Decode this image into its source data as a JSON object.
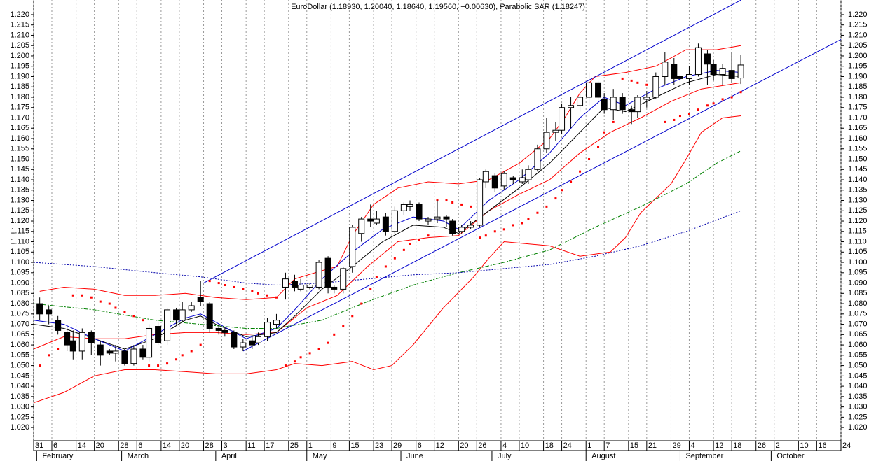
{
  "chart_data": {
    "type": "candlestick",
    "title": "EuroDollar (1.18930, 1.20040, 1.18640, 1.19560, +0.00630), Parabolic SAR (1.18247)",
    "xlim": [
      0,
      266
    ],
    "ylim": [
      1.0136,
      1.2271
    ],
    "grid": "x",
    "up_color": "#ffffff",
    "down_color": "#000000",
    "xticks": [
      {
        "value": 0,
        "label": "31"
      },
      {
        "value": 6,
        "label": "6"
      },
      {
        "value": 14,
        "label": "14"
      },
      {
        "value": 20,
        "label": "20"
      },
      {
        "value": 28,
        "label": "28"
      },
      {
        "value": 34,
        "label": "6"
      },
      {
        "value": 42,
        "label": "14"
      },
      {
        "value": 48,
        "label": "20"
      },
      {
        "value": 56,
        "label": "28"
      },
      {
        "value": 62,
        "label": "3"
      },
      {
        "value": 70,
        "label": "11"
      },
      {
        "value": 76,
        "label": "17"
      },
      {
        "value": 84,
        "label": "25"
      },
      {
        "value": 90,
        "label": "1"
      },
      {
        "value": 98,
        "label": "9"
      },
      {
        "value": 104,
        "label": "15"
      },
      {
        "value": 112,
        "label": "23"
      },
      {
        "value": 118,
        "label": "29"
      },
      {
        "value": 126,
        "label": "6"
      },
      {
        "value": 132,
        "label": "12"
      },
      {
        "value": 140,
        "label": "20"
      },
      {
        "value": 146,
        "label": "26"
      },
      {
        "value": 154,
        "label": "4"
      },
      {
        "value": 160,
        "label": "10"
      },
      {
        "value": 168,
        "label": "18"
      },
      {
        "value": 174,
        "label": "24"
      },
      {
        "value": 182,
        "label": "1"
      },
      {
        "value": 188,
        "label": "7"
      },
      {
        "value": 196,
        "label": "15"
      },
      {
        "value": 202,
        "label": "21"
      },
      {
        "value": 210,
        "label": "29"
      },
      {
        "value": 216,
        "label": "4"
      },
      {
        "value": 224,
        "label": "12"
      },
      {
        "value": 230,
        "label": "18"
      },
      {
        "value": 238,
        "label": "26"
      },
      {
        "value": 244,
        "label": "2"
      },
      {
        "value": 252,
        "label": "10"
      },
      {
        "value": 258,
        "label": "16"
      },
      {
        "value": 266,
        "label": "24"
      }
    ],
    "months": [
      {
        "value": 1,
        "label": "February"
      },
      {
        "value": 29,
        "label": "March"
      },
      {
        "value": 60,
        "label": "April"
      },
      {
        "value": 90,
        "label": "May"
      },
      {
        "value": 121,
        "label": "June"
      },
      {
        "value": 151,
        "label": "July"
      },
      {
        "value": 182,
        "label": "August"
      },
      {
        "value": 213,
        "label": "September"
      },
      {
        "value": 243,
        "label": "October"
      }
    ],
    "yticks": [
      {
        "value": 1.02,
        "label": "1.020"
      },
      1.025,
      {
        "value": 1.03,
        "label": "1.030"
      },
      1.035,
      {
        "value": 1.04,
        "label": "1.040"
      },
      1.045,
      {
        "value": 1.05,
        "label": "1.050"
      },
      1.055,
      {
        "value": 1.06,
        "label": "1.060"
      },
      1.065,
      {
        "value": 1.07,
        "label": "1.070"
      },
      1.075,
      {
        "value": 1.08,
        "label": "1.080"
      },
      1.085,
      {
        "value": 1.09,
        "label": "1.090"
      },
      1.095,
      {
        "value": 1.1,
        "label": "1.100"
      },
      1.105,
      {
        "value": 1.11,
        "label": "1.110"
      },
      1.115,
      {
        "value": 1.12,
        "label": "1.120"
      },
      1.125,
      {
        "value": 1.13,
        "label": "1.130"
      },
      1.135,
      {
        "value": 1.14,
        "label": "1.140"
      },
      1.145,
      {
        "value": 1.15,
        "label": "1.150"
      },
      1.155,
      {
        "value": 1.16,
        "label": "1.160"
      },
      1.165,
      {
        "value": 1.17,
        "label": "1.170"
      },
      1.175,
      {
        "value": 1.18,
        "label": "1.180"
      },
      1.185,
      {
        "value": 1.19,
        "label": "1.190"
      },
      1.195,
      {
        "value": 1.2,
        "label": "1.200"
      },
      1.205,
      {
        "value": 1.21,
        "label": "1.210"
      },
      1.215,
      {
        "value": 1.22,
        "label": "1.220"
      }
    ],
    "x": [
      2,
      5,
      8,
      11,
      13,
      16,
      19,
      22,
      25,
      27,
      30,
      33,
      36,
      38,
      41,
      44,
      47,
      49,
      52,
      55,
      58,
      61,
      63,
      66,
      69,
      72,
      74,
      77,
      80,
      83,
      86,
      88,
      91,
      94,
      97,
      99,
      102,
      105,
      108,
      111,
      113,
      116,
      119,
      122,
      124,
      127,
      130,
      133,
      136,
      138,
      141,
      144,
      147,
      149,
      152,
      155,
      158,
      161,
      163,
      166,
      169,
      172,
      174,
      177,
      180,
      183,
      186,
      188,
      191,
      194,
      197,
      199,
      202,
      205,
      208,
      211,
      213,
      216,
      219,
      222,
      224,
      227,
      230,
      233
    ],
    "open": [
      1.08,
      1.077,
      1.072,
      1.066,
      1.062,
      1.057,
      1.066,
      1.06,
      1.057,
      1.056,
      1.057,
      1.051,
      1.058,
      1.054,
      1.069,
      1.062,
      1.077,
      1.072,
      1.077,
      1.083,
      1.08,
      1.068,
      1.067,
      1.066,
      1.059,
      1.062,
      1.061,
      1.064,
      1.07,
      1.088,
      1.091,
      1.087,
      1.088,
      1.088,
      1.102,
      1.088,
      1.087,
      1.098,
      1.114,
      1.121,
      1.119,
      1.122,
      1.115,
      1.125,
      1.127,
      1.128,
      1.12,
      1.121,
      1.122,
      1.12,
      1.115,
      1.117,
      1.118,
      1.139,
      1.142,
      1.137,
      1.141,
      1.139,
      1.14,
      1.145,
      1.155,
      1.163,
      1.164,
      1.175,
      1.176,
      1.18,
      1.187,
      1.179,
      1.174,
      1.18,
      1.174,
      1.173,
      1.179,
      1.18,
      1.19,
      1.196,
      1.19,
      1.189,
      1.191,
      1.201,
      1.196,
      1.191,
      1.193,
      1.1893
    ],
    "high": [
      1.083,
      1.079,
      1.074,
      1.069,
      1.067,
      1.068,
      1.067,
      1.062,
      1.058,
      1.06,
      1.058,
      1.06,
      1.06,
      1.07,
      1.071,
      1.078,
      1.078,
      1.081,
      1.081,
      1.091,
      1.081,
      1.07,
      1.068,
      1.067,
      1.063,
      1.064,
      1.066,
      1.073,
      1.075,
      1.095,
      1.094,
      1.092,
      1.09,
      1.101,
      1.103,
      1.089,
      1.098,
      1.118,
      1.122,
      1.128,
      1.125,
      1.124,
      1.127,
      1.129,
      1.13,
      1.129,
      1.122,
      1.13,
      1.123,
      1.121,
      1.118,
      1.12,
      1.141,
      1.145,
      1.143,
      1.144,
      1.142,
      1.145,
      1.147,
      1.157,
      1.17,
      1.168,
      1.177,
      1.18,
      1.183,
      1.192,
      1.188,
      1.182,
      1.184,
      1.182,
      1.176,
      1.181,
      1.183,
      1.192,
      1.202,
      1.199,
      1.191,
      1.195,
      1.206,
      1.203,
      1.198,
      1.196,
      1.202,
      1.2004
    ],
    "low": [
      1.072,
      1.07,
      1.065,
      1.057,
      1.053,
      1.053,
      1.055,
      1.05,
      1.055,
      1.052,
      1.05,
      1.05,
      1.053,
      1.052,
      1.06,
      1.06,
      1.07,
      1.071,
      1.076,
      1.079,
      1.066,
      1.065,
      1.064,
      1.058,
      1.057,
      1.058,
      1.06,
      1.062,
      1.068,
      1.082,
      1.086,
      1.086,
      1.087,
      1.087,
      1.085,
      1.085,
      1.085,
      1.095,
      1.11,
      1.117,
      1.118,
      1.113,
      1.114,
      1.123,
      1.125,
      1.12,
      1.118,
      1.119,
      1.117,
      1.113,
      1.114,
      1.116,
      1.117,
      1.136,
      1.134,
      1.135,
      1.138,
      1.138,
      1.138,
      1.144,
      1.153,
      1.159,
      1.162,
      1.165,
      1.173,
      1.176,
      1.178,
      1.172,
      1.169,
      1.172,
      1.167,
      1.17,
      1.175,
      1.179,
      1.186,
      1.186,
      1.187,
      1.186,
      1.19,
      1.186,
      1.188,
      1.186,
      1.187,
      1.1864
    ],
    "close": [
      1.075,
      1.075,
      1.067,
      1.06,
      1.057,
      1.066,
      1.061,
      1.055,
      1.056,
      1.057,
      1.051,
      1.058,
      1.054,
      1.068,
      1.061,
      1.077,
      1.072,
      1.077,
      1.079,
      1.081,
      1.068,
      1.067,
      1.066,
      1.059,
      1.061,
      1.06,
      1.064,
      1.071,
      1.072,
      1.092,
      1.088,
      1.089,
      1.089,
      1.1,
      1.088,
      1.087,
      1.097,
      1.117,
      1.121,
      1.12,
      1.121,
      1.115,
      1.125,
      1.128,
      1.128,
      1.121,
      1.121,
      1.122,
      1.121,
      1.114,
      1.117,
      1.118,
      1.14,
      1.144,
      1.136,
      1.143,
      1.14,
      1.141,
      1.145,
      1.155,
      1.163,
      1.164,
      1.175,
      1.176,
      1.18,
      1.187,
      1.18,
      1.174,
      1.18,
      1.174,
      1.173,
      1.18,
      1.18,
      1.19,
      1.197,
      1.189,
      1.189,
      1.191,
      1.204,
      1.196,
      1.191,
      1.194,
      1.189,
      1.1956
    ],
    "sar": {
      "color": "#ff0000",
      "values": [
        1.05,
        1.055,
        1.058,
        1.061,
        1.084,
        1.084,
        1.083,
        1.081,
        1.08,
        1.078,
        1.076,
        1.074,
        1.072,
        1.05,
        1.05,
        1.051,
        1.053,
        1.055,
        1.057,
        1.06,
        1.091,
        1.09,
        1.089,
        1.088,
        1.087,
        1.086,
        1.085,
        1.084,
        1.083,
        1.05,
        1.052,
        1.054,
        1.056,
        1.058,
        1.061,
        1.065,
        1.069,
        1.074,
        1.08,
        1.087,
        1.093,
        1.098,
        1.102,
        1.106,
        1.109,
        1.111,
        1.113,
        1.13,
        1.13,
        1.129,
        1.128,
        1.127,
        1.112,
        1.113,
        1.115,
        1.116,
        1.118,
        1.119,
        1.121,
        1.124,
        1.127,
        1.131,
        1.135,
        1.139,
        1.144,
        1.15,
        1.156,
        1.163,
        1.168,
        1.189,
        1.188,
        1.187,
        1.186,
        1.185,
        1.168,
        1.169,
        1.171,
        1.172,
        1.174,
        1.176,
        1.177,
        1.179,
        1.18,
        1.18247
      ]
    },
    "lines": [
      {
        "color": "#ff0000",
        "style": "solid",
        "x": [
          2,
          10,
          20,
          30,
          40,
          50,
          60,
          70,
          80,
          86,
          95,
          100,
          105,
          112,
          120,
          130,
          140,
          150,
          160,
          170,
          175,
          180,
          185,
          195,
          205,
          215,
          225,
          233
        ],
        "values": [
          1.086,
          1.088,
          1.087,
          1.084,
          1.084,
          1.085,
          1.083,
          1.082,
          1.083,
          1.092,
          1.096,
          1.098,
          1.113,
          1.128,
          1.136,
          1.139,
          1.138,
          1.14,
          1.148,
          1.16,
          1.17,
          1.182,
          1.19,
          1.192,
          1.195,
          1.203,
          1.203,
          1.205
        ]
      },
      {
        "color": "#ff0000",
        "style": "solid",
        "x": [
          0,
          10,
          20,
          30,
          40,
          50,
          60,
          70,
          80,
          86,
          95,
          105,
          112,
          118,
          125,
          135,
          145,
          150,
          155,
          170,
          180,
          190,
          195,
          200,
          210,
          215,
          220,
          227,
          233
        ],
        "values": [
          1.032,
          1.037,
          1.045,
          1.048,
          1.048,
          1.047,
          1.046,
          1.046,
          1.048,
          1.051,
          1.05,
          1.052,
          1.048,
          1.05,
          1.06,
          1.078,
          1.093,
          1.102,
          1.11,
          1.108,
          1.103,
          1.105,
          1.112,
          1.124,
          1.138,
          1.15,
          1.163,
          1.17,
          1.171
        ]
      },
      {
        "color": "#ff0000",
        "style": "solid",
        "x": [
          0,
          10,
          20,
          30,
          40,
          50,
          60,
          70,
          80,
          90,
          100,
          110,
          120,
          130,
          140,
          150,
          160,
          170,
          180,
          190,
          200,
          210,
          220,
          233
        ],
        "values": [
          1.058,
          1.064,
          1.063,
          1.063,
          1.065,
          1.066,
          1.066,
          1.065,
          1.066,
          1.078,
          1.084,
          1.098,
          1.11,
          1.112,
          1.113,
          1.125,
          1.133,
          1.14,
          1.153,
          1.163,
          1.17,
          1.178,
          1.184,
          1.187
        ]
      },
      {
        "color": "#000000",
        "style": "solid",
        "x": [
          0,
          10,
          20,
          30,
          40,
          50,
          55,
          60,
          70,
          80,
          86,
          95,
          105,
          115,
          125,
          135,
          140,
          150,
          160,
          170,
          180,
          188,
          195,
          205,
          215,
          225,
          233
        ],
        "values": [
          1.07,
          1.068,
          1.063,
          1.058,
          1.063,
          1.072,
          1.074,
          1.07,
          1.064,
          1.066,
          1.074,
          1.087,
          1.098,
          1.11,
          1.118,
          1.117,
          1.114,
          1.125,
          1.136,
          1.148,
          1.163,
          1.175,
          1.173,
          1.18,
          1.187,
          1.191,
          1.19
        ]
      },
      {
        "color": "#0000cc",
        "style": "solid",
        "x": [
          0,
          10,
          20,
          30,
          40,
          50,
          55,
          60,
          70,
          80,
          86,
          95,
          105,
          115,
          125,
          135,
          140,
          150,
          160,
          170,
          180,
          188,
          195,
          205,
          215,
          225,
          233
        ],
        "values": [
          1.072,
          1.07,
          1.063,
          1.057,
          1.065,
          1.073,
          1.075,
          1.071,
          1.063,
          1.068,
          1.077,
          1.092,
          1.105,
          1.116,
          1.122,
          1.12,
          1.116,
          1.13,
          1.14,
          1.153,
          1.17,
          1.18,
          1.176,
          1.184,
          1.19,
          1.193,
          1.192
        ]
      },
      {
        "color": "#008000",
        "style": "dashdot",
        "x": [
          0,
          20,
          40,
          55,
          70,
          80,
          95,
          110,
          125,
          140,
          155,
          170,
          185,
          200,
          215,
          225,
          233
        ],
        "values": [
          1.08,
          1.077,
          1.072,
          1.07,
          1.068,
          1.068,
          1.072,
          1.081,
          1.089,
          1.095,
          1.1,
          1.106,
          1.117,
          1.127,
          1.138,
          1.148,
          1.154
        ]
      },
      {
        "color": "#0000aa",
        "style": "dotted",
        "x": [
          0,
          20,
          40,
          55,
          70,
          80,
          95,
          110,
          125,
          140,
          155,
          170,
          185,
          200,
          215,
          233
        ],
        "values": [
          1.1,
          1.098,
          1.095,
          1.093,
          1.09,
          1.089,
          1.09,
          1.092,
          1.094,
          1.095,
          1.097,
          1.099,
          1.103,
          1.108,
          1.115,
          1.125
        ]
      },
      {
        "color": "#0000cc",
        "style": "solid",
        "x": [
          56,
          233
        ],
        "values": [
          1.09,
          1.227
        ]
      },
      {
        "color": "#0000cc",
        "style": "solid",
        "x": [
          69,
          266
        ],
        "values": [
          1.057,
          1.208
        ]
      }
    ]
  }
}
